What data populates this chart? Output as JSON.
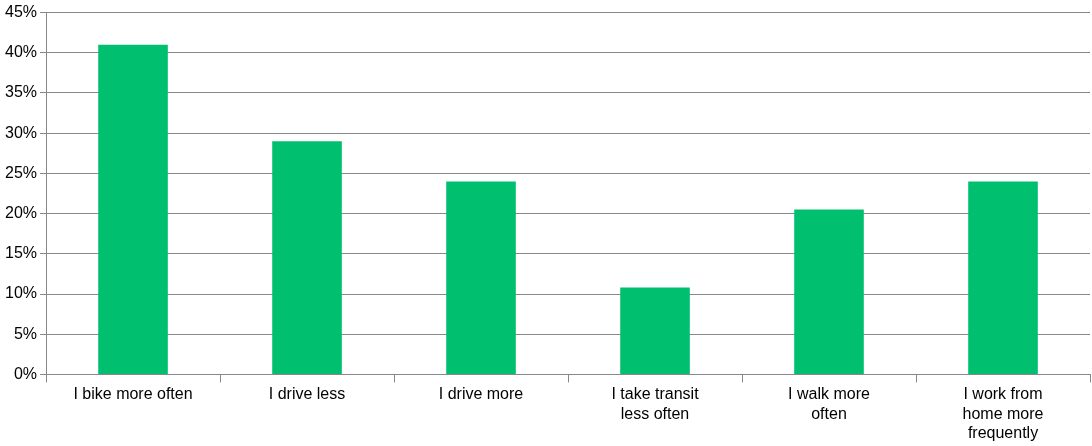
{
  "chart_data": {
    "type": "bar",
    "categories": [
      "I bike more often",
      "I drive less",
      "I drive more",
      "I take transit less often",
      "I walk more often",
      "I work from home more frequently"
    ],
    "values": [
      41,
      29,
      24,
      10.8,
      20.5,
      24
    ],
    "color": "#00c070",
    "ylim": [
      0,
      45
    ],
    "yticks": [
      {
        "value": 0,
        "label": "0%"
      },
      {
        "value": 5,
        "label": "5%"
      },
      {
        "value": 10,
        "label": "10%"
      },
      {
        "value": 15,
        "label": "15%"
      },
      {
        "value": 20,
        "label": "20%"
      },
      {
        "value": 25,
        "label": "25%"
      },
      {
        "value": 30,
        "label": "30%"
      },
      {
        "value": 35,
        "label": "35%"
      },
      {
        "value": 40,
        "label": "40%"
      },
      {
        "value": 45,
        "label": "45%"
      }
    ],
    "grid": "y"
  }
}
